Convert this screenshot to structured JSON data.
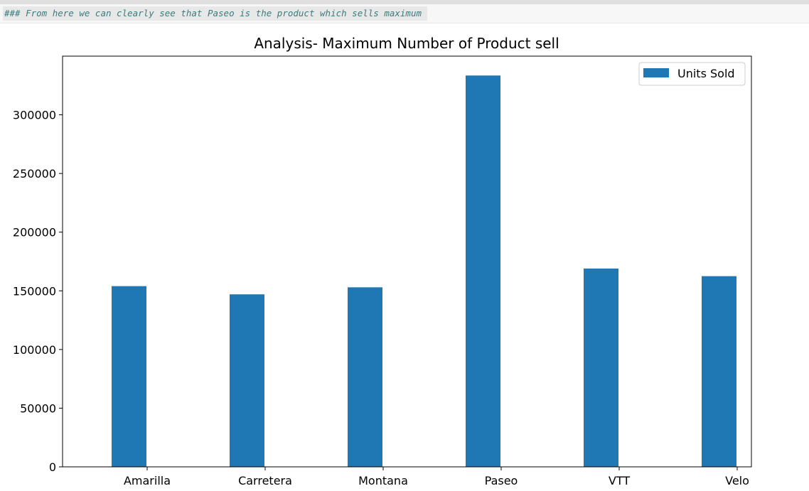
{
  "notebook": {
    "markdown_line": "### From here we can clearly see that Paseo is the product which sells maximum"
  },
  "colors": {
    "bar": "#1f77b4",
    "axis": "#000000",
    "markdown_text": "#3c7a7d"
  },
  "chart_data": {
    "type": "bar",
    "title": "Analysis- Maximum Number of Product sell",
    "xlabel": "",
    "ylabel": "",
    "categories": [
      "Amarilla",
      "Carretera",
      "Montana",
      "Paseo",
      "VTT",
      "Velo"
    ],
    "series": [
      {
        "name": "Units Sold",
        "values": [
          154000,
          147000,
          153000,
          333500,
          169000,
          162500
        ]
      }
    ],
    "ylim": [
      0,
      350000
    ],
    "yticks": [
      0,
      50000,
      100000,
      150000,
      200000,
      250000,
      300000
    ],
    "ytick_labels": [
      "0",
      "50000",
      "100000",
      "150000",
      "200000",
      "250000",
      "300000"
    ],
    "grid": false,
    "legend": "top-right"
  }
}
